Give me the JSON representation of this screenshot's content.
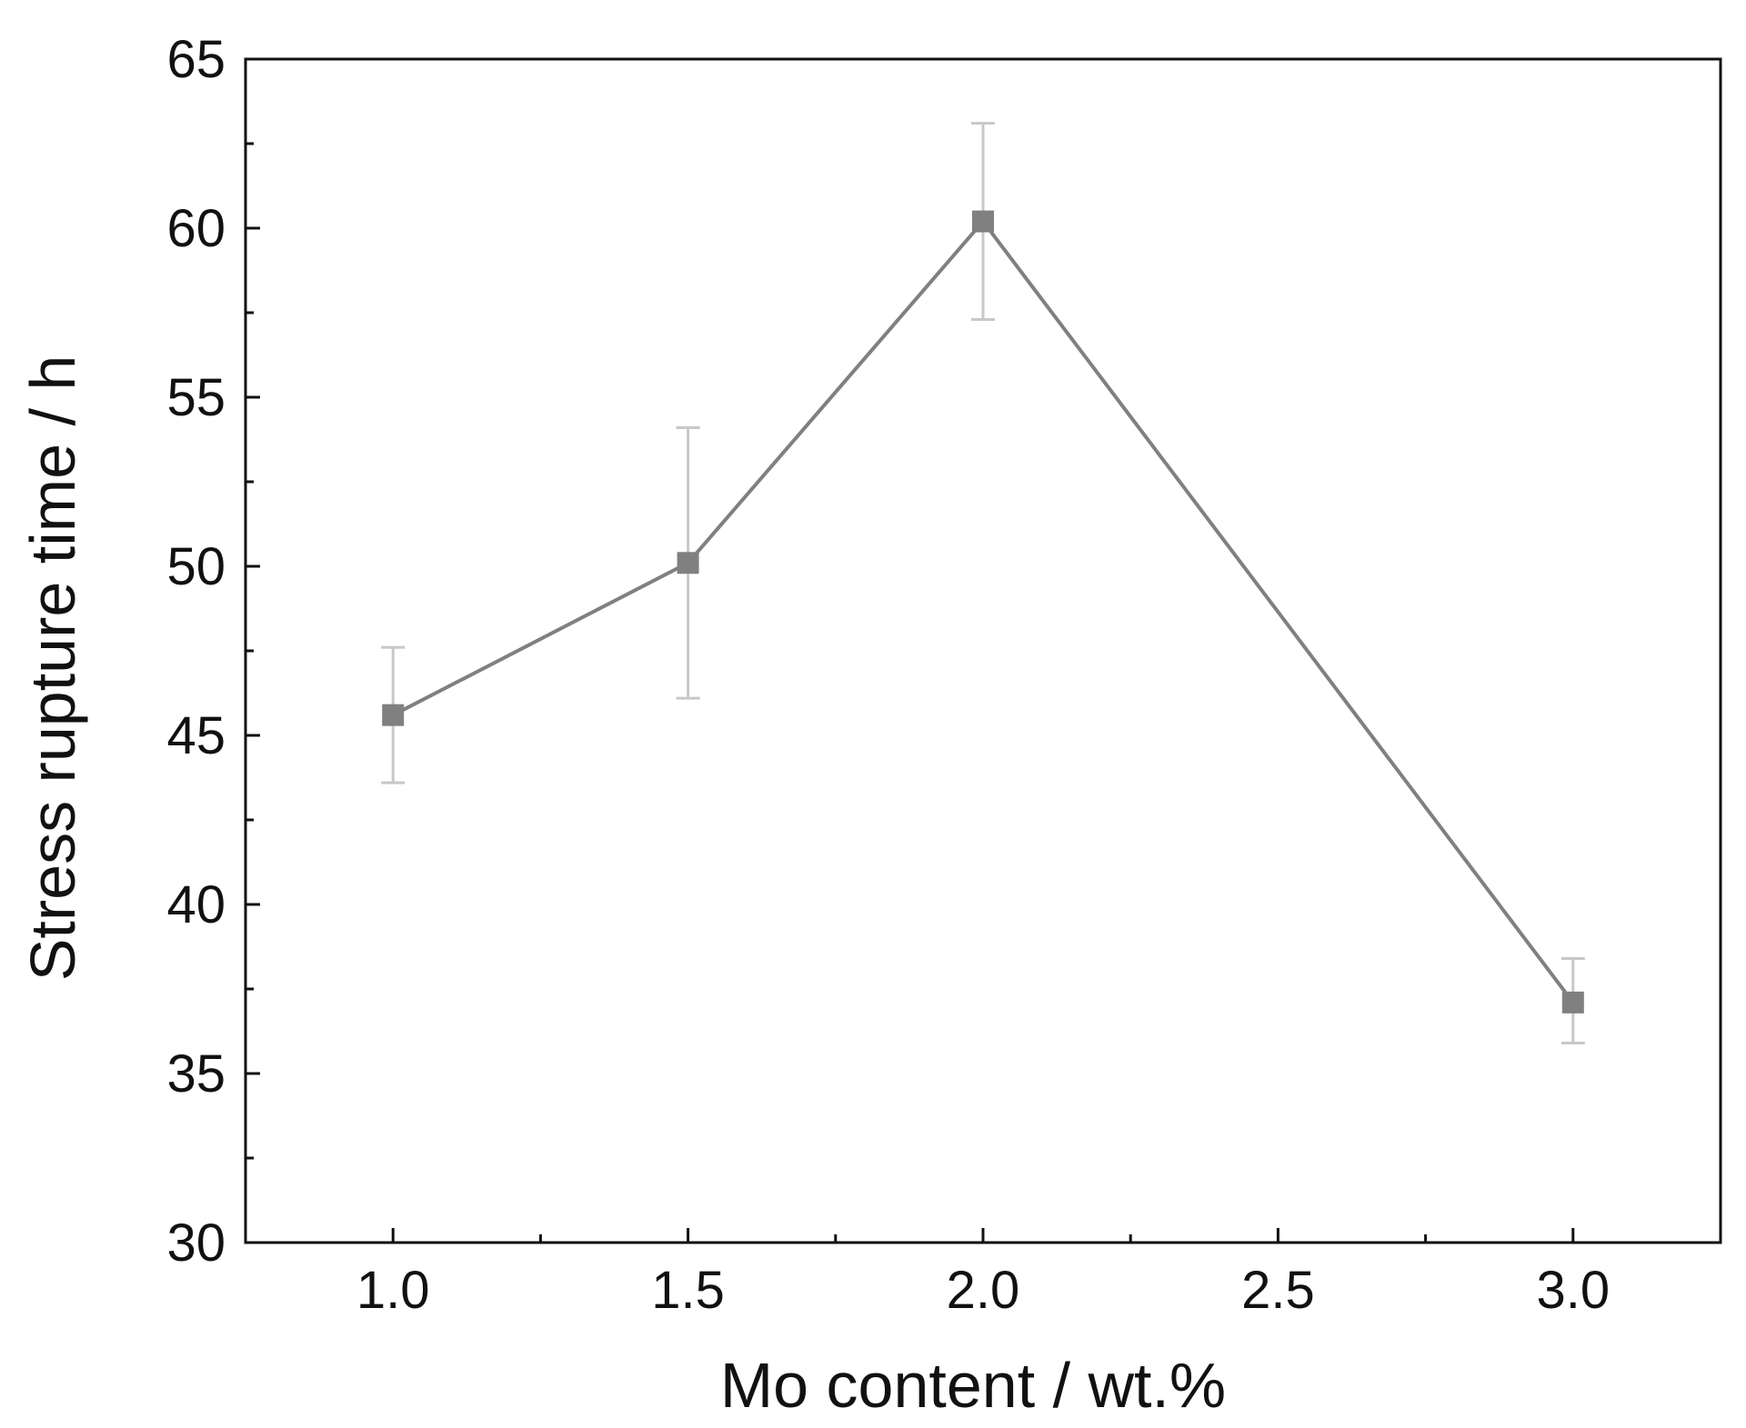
{
  "chart_data": {
    "type": "line",
    "title": "",
    "xlabel": "Mo content / wt.%",
    "ylabel": "Stress rupture time / h",
    "xlim": [
      0.75,
      3.25
    ],
    "ylim": [
      30,
      65
    ],
    "x_ticks": [
      1.0,
      1.5,
      2.0,
      2.5,
      3.0
    ],
    "x_tick_labels": [
      "1.0",
      "1.5",
      "2.0",
      "2.5",
      "3.0"
    ],
    "x_minor_ticks": [
      1.25,
      1.75,
      2.25,
      2.75
    ],
    "y_ticks": [
      30,
      35,
      40,
      45,
      50,
      55,
      60,
      65
    ],
    "y_tick_labels": [
      "30",
      "35",
      "40",
      "45",
      "50",
      "55",
      "60",
      "65"
    ],
    "y_minor_ticks": [
      32.5,
      37.5,
      42.5,
      47.5,
      52.5,
      57.5,
      62.5
    ],
    "grid": false,
    "series": [
      {
        "x": [
          1.0,
          1.5,
          2.0,
          3.0
        ],
        "y": [
          45.6,
          50.1,
          60.2,
          37.1
        ],
        "error_low": [
          43.6,
          46.1,
          57.3,
          35.9
        ],
        "error_high": [
          47.6,
          54.1,
          63.1,
          38.4
        ],
        "color": "#808080",
        "marker": "square",
        "error_color": "#c8c8c8"
      }
    ]
  }
}
